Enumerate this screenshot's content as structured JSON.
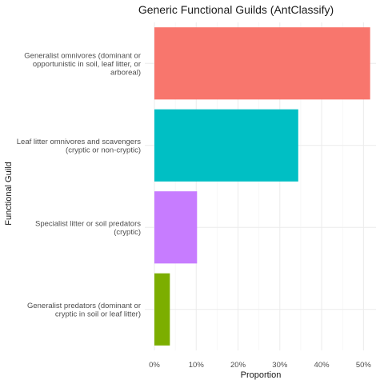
{
  "chart_data": {
    "type": "bar",
    "orientation": "horizontal",
    "title": "Generic Functional Guilds (AntClassify)",
    "xlabel": "Proportion",
    "ylabel": "Functional Guild",
    "xlim": [
      0,
      0.53
    ],
    "x_ticks": [
      0,
      0.1,
      0.2,
      0.3,
      0.4,
      0.5
    ],
    "x_tick_labels": [
      "0%",
      "10%",
      "20%",
      "30%",
      "40%",
      "50%"
    ],
    "grid": true,
    "legend": "none",
    "categories": [
      "Generalist omnivores (dominant or opportunistic in soil, leaf litter, or arboreal)",
      "Leaf litter omnivores and scavengers (cryptic or non-cryptic)",
      "Specialist litter or soil predators (cryptic)",
      "Generalist predators (dominant or cryptic in soil or leaf litter)"
    ],
    "category_label_lines": [
      [
        "Generalist omnivores (dominant or",
        "opportunistic in soil, leaf litter, or",
        "arboreal)"
      ],
      [
        "Leaf litter omnivores and scavengers",
        "(cryptic or non-cryptic)"
      ],
      [
        "Specialist litter or soil predators",
        "(cryptic)"
      ],
      [
        "Generalist predators (dominant or",
        "cryptic in soil or leaf litter)"
      ]
    ],
    "values": [
      0.516,
      0.344,
      0.102,
      0.037
    ],
    "colors": [
      "#F8766D",
      "#00BFC4",
      "#C77CFF",
      "#7CAE00"
    ]
  }
}
